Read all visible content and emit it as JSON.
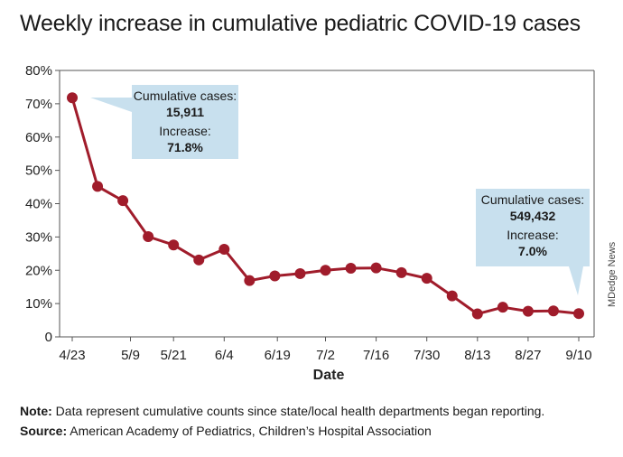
{
  "title": "Weekly increase in cumulative pediatric COVID-19 cases",
  "chart_data": {
    "type": "line",
    "title": "Weekly increase in cumulative pediatric COVID-19 cases",
    "xlabel": "Date",
    "ylabel": "",
    "ylim": [
      0,
      80
    ],
    "y_ticks": [
      "0",
      "10%",
      "20%",
      "30%",
      "40%",
      "50%",
      "60%",
      "70%",
      "80%"
    ],
    "y_tick_values": [
      0,
      10,
      20,
      30,
      40,
      50,
      60,
      70,
      80
    ],
    "x": [
      "4/23",
      "4/30",
      "5/7",
      "5/14",
      "5/21",
      "5/28",
      "6/4",
      "6/11",
      "6/18",
      "6/25",
      "7/2",
      "7/9",
      "7/16",
      "7/23",
      "7/30",
      "8/6",
      "8/13",
      "8/20",
      "8/27",
      "9/3",
      "9/10"
    ],
    "x_ticks": [
      "4/23",
      "5/9",
      "5/21",
      "6/4",
      "6/19",
      "7/2",
      "7/16",
      "7/30",
      "8/13",
      "8/27",
      "9/10"
    ],
    "x_tick_index": [
      0,
      2.3,
      4,
      6,
      8.1,
      10,
      12,
      14,
      16,
      18,
      20
    ],
    "series": [
      {
        "values": [
          71.8,
          45.2,
          40.9,
          30.1,
          27.6,
          23.1,
          26.3,
          16.9,
          18.3,
          19.0,
          20.0,
          20.6,
          20.7,
          19.3,
          17.6,
          12.3,
          6.9,
          8.9,
          7.7,
          7.8,
          7.0
        ]
      }
    ],
    "grid": false,
    "colors": {
      "line": "#a01c2b",
      "callout": "#c8e0ee"
    }
  },
  "callouts": [
    {
      "line1": "Cumulative cases:",
      "value1": "15,911",
      "line2": "Increase:",
      "value2": "71.8%"
    },
    {
      "line1": "Cumulative cases:",
      "value1": "549,432",
      "line2": "Increase:",
      "value2": "7.0%"
    }
  ],
  "footer": {
    "note_label": "Note:",
    "note_text": " Data represent cumulative counts since state/local health departments began reporting.",
    "source_label": "Source:",
    "source_text": " American Academy of Pediatrics, Children’s Hospital Association"
  },
  "credit": "MDedge News"
}
